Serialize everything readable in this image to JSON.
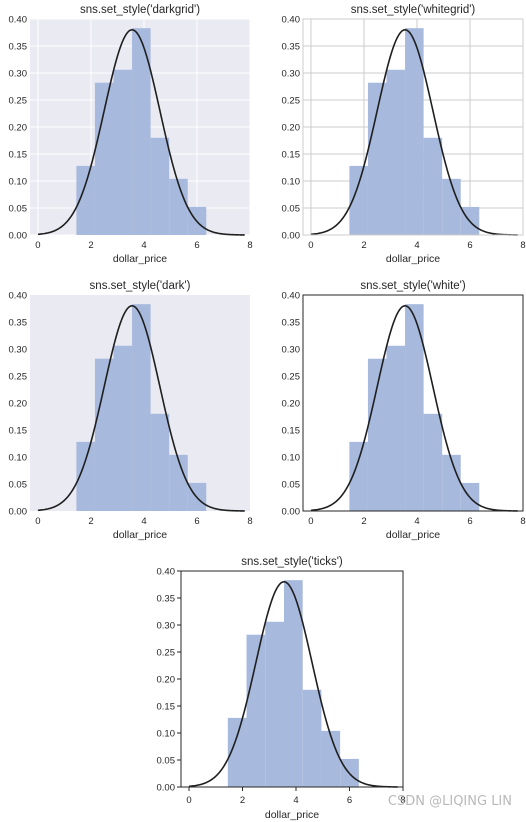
{
  "chart_data": [
    {
      "type": "bar",
      "style": "darkgrid",
      "title": "sns.set_style('darkgrid')",
      "xlabel": "dollar_price",
      "xlim": [
        -0.3,
        8
      ],
      "ylim": [
        0,
        0.4
      ],
      "xticks": [
        "0",
        "2",
        "4",
        "6",
        "8"
      ],
      "yticks": [
        "0.00",
        "0.05",
        "0.10",
        "0.15",
        "0.20",
        "0.25",
        "0.30",
        "0.35",
        "0.40"
      ],
      "grid": true,
      "bins": [
        1.45,
        2.15,
        2.85,
        3.55,
        4.25,
        4.95,
        5.65,
        6.35
      ],
      "densities": [
        0.128,
        0.282,
        0.306,
        0.383,
        0.18,
        0.104,
        0.052
      ],
      "kde": {
        "mean": 3.55,
        "sd": 1.05,
        "peak": 0.38
      }
    },
    {
      "type": "bar",
      "style": "whitegrid",
      "title": "sns.set_style('whitegrid')",
      "xlabel": "dollar_price",
      "xlim": [
        -0.3,
        8
      ],
      "ylim": [
        0,
        0.4
      ],
      "xticks": [
        "0",
        "2",
        "4",
        "6",
        "8"
      ],
      "yticks": [
        "0.00",
        "0.05",
        "0.10",
        "0.15",
        "0.20",
        "0.25",
        "0.30",
        "0.35",
        "0.40"
      ],
      "grid": true,
      "bins": [
        1.45,
        2.15,
        2.85,
        3.55,
        4.25,
        4.95,
        5.65,
        6.35
      ],
      "densities": [
        0.128,
        0.282,
        0.306,
        0.383,
        0.18,
        0.104,
        0.052
      ],
      "kde": {
        "mean": 3.55,
        "sd": 1.05,
        "peak": 0.38
      }
    },
    {
      "type": "bar",
      "style": "dark",
      "title": "sns.set_style('dark')",
      "xlabel": "dollar_price",
      "xlim": [
        -0.3,
        8
      ],
      "ylim": [
        0,
        0.4
      ],
      "xticks": [
        "0",
        "2",
        "4",
        "6",
        "8"
      ],
      "yticks": [
        "0.00",
        "0.05",
        "0.10",
        "0.15",
        "0.20",
        "0.25",
        "0.30",
        "0.35",
        "0.40"
      ],
      "grid": false,
      "bins": [
        1.45,
        2.15,
        2.85,
        3.55,
        4.25,
        4.95,
        5.65,
        6.35
      ],
      "densities": [
        0.128,
        0.282,
        0.306,
        0.383,
        0.18,
        0.104,
        0.052
      ],
      "kde": {
        "mean": 3.55,
        "sd": 1.05,
        "peak": 0.38
      }
    },
    {
      "type": "bar",
      "style": "white",
      "title": "sns.set_style('white')",
      "xlabel": "dollar_price",
      "xlim": [
        -0.3,
        8
      ],
      "ylim": [
        0,
        0.4
      ],
      "xticks": [
        "0",
        "2",
        "4",
        "6",
        "8"
      ],
      "yticks": [
        "0.00",
        "0.05",
        "0.10",
        "0.15",
        "0.20",
        "0.25",
        "0.30",
        "0.35",
        "0.40"
      ],
      "grid": false,
      "bins": [
        1.45,
        2.15,
        2.85,
        3.55,
        4.25,
        4.95,
        5.65,
        6.35
      ],
      "densities": [
        0.128,
        0.282,
        0.306,
        0.383,
        0.18,
        0.104,
        0.052
      ],
      "kde": {
        "mean": 3.55,
        "sd": 1.05,
        "peak": 0.38
      }
    },
    {
      "type": "bar",
      "style": "ticks",
      "title": "sns.set_style('ticks')",
      "xlabel": "dollar_price",
      "xlim": [
        -0.3,
        8
      ],
      "ylim": [
        0,
        0.4
      ],
      "xticks": [
        "0",
        "2",
        "4",
        "6",
        "8"
      ],
      "yticks": [
        "0.00",
        "0.05",
        "0.10",
        "0.15",
        "0.20",
        "0.25",
        "0.30",
        "0.35",
        "0.40"
      ],
      "grid": false,
      "bins": [
        1.45,
        2.15,
        2.85,
        3.55,
        4.25,
        4.95,
        5.65,
        6.35
      ],
      "densities": [
        0.128,
        0.282,
        0.306,
        0.383,
        0.18,
        0.104,
        0.052
      ],
      "kde": {
        "mean": 3.55,
        "sd": 1.05,
        "peak": 0.38
      }
    }
  ],
  "colors": {
    "bar": "#a7b9dc",
    "kde": "#1f1f1f",
    "dark_background": "#eaeaf2",
    "grid_light": "#ffffff",
    "grid_dark": "#cccccc",
    "spine": "#262626"
  },
  "watermark": "CSDN @LIQING LIN"
}
